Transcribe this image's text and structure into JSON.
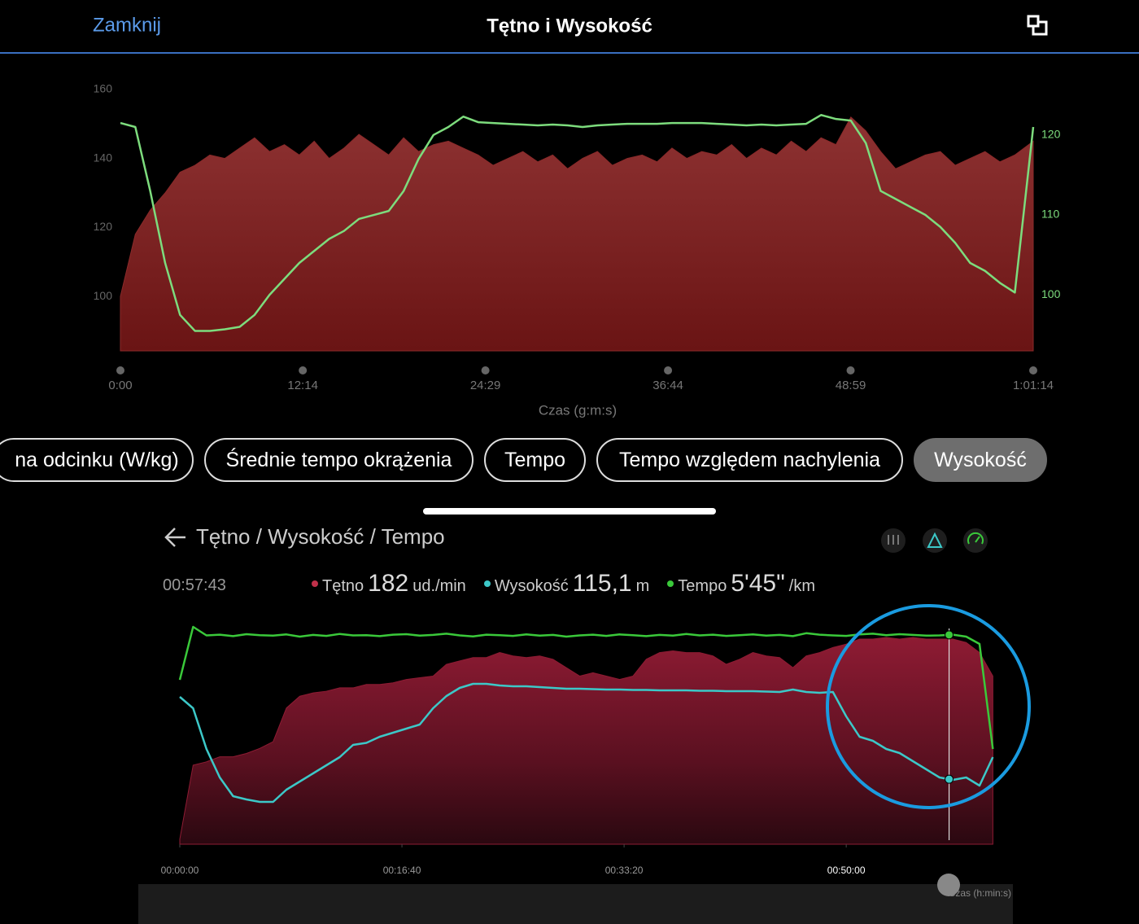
{
  "header": {
    "close": "Zamknij",
    "title": "Tętno i Wysokość"
  },
  "tabs": [
    "na odcinku (W/kg)",
    "Średnie tempo okrążenia",
    "Tempo",
    "Tempo względem nachylenia",
    "Wysokość"
  ],
  "chart_data": [
    {
      "type": "line",
      "x": [
        0,
        60,
        120,
        180,
        240,
        300,
        360,
        420,
        480,
        540,
        600,
        660,
        720,
        780,
        840,
        900,
        960,
        1020,
        1080,
        1140,
        1200,
        1260,
        1320,
        1380,
        1440,
        1500,
        1560,
        1620,
        1680,
        1740,
        1800,
        1860,
        1920,
        1980,
        2040,
        2100,
        2160,
        2220,
        2280,
        2340,
        2400,
        2460,
        2520,
        2580,
        2640,
        2700,
        2760,
        2820,
        2880,
        2940,
        3000,
        3060,
        3120,
        3180,
        3240,
        3300,
        3360,
        3420,
        3480,
        3540,
        3600,
        3674
      ],
      "xlim": [
        0,
        3674
      ],
      "xticks": [
        {
          "value": 0,
          "label": "0:00"
        },
        {
          "value": 734,
          "label": "12:14"
        },
        {
          "value": 1469,
          "label": "24:29"
        },
        {
          "value": 2204,
          "label": "36:44"
        },
        {
          "value": 2939,
          "label": "48:59"
        },
        {
          "value": 3674,
          "label": "1:01:14"
        }
      ],
      "xlabel": "Czas (g:m:s)",
      "ylim": [
        84.2,
        162.1
      ],
      "yticks": [
        100,
        120,
        140,
        160
      ],
      "y2lim": [
        93,
        126.6
      ],
      "y2ticks": [
        100,
        110,
        120
      ],
      "series": [
        {
          "type": "area",
          "color": "#8a2a2a",
          "values": [
            100,
            118,
            125,
            130,
            136,
            138,
            141,
            140,
            143,
            146,
            142,
            144,
            141,
            145,
            140,
            143,
            147,
            144,
            141,
            146,
            142,
            144,
            145,
            143,
            141,
            138,
            140,
            142,
            139,
            141,
            137,
            140,
            142,
            138,
            140,
            141,
            139,
            143,
            140,
            142,
            141,
            144,
            140,
            143,
            141,
            145,
            142,
            146,
            144,
            152,
            148,
            142,
            137,
            139,
            141,
            142,
            138,
            140,
            142,
            139,
            141,
            145
          ]
        },
        {
          "type": "line",
          "axis": "y2",
          "color": "#7ddc7d",
          "values": [
            121.5,
            121,
            113,
            104,
            97.5,
            95.5,
            95.5,
            95.7,
            96,
            97.5,
            100,
            102,
            104,
            105.5,
            107,
            108,
            109.5,
            110,
            110.5,
            113,
            117,
            120,
            121,
            122.3,
            121.6,
            121.5,
            121.4,
            121.3,
            121.2,
            121.3,
            121.2,
            121,
            121.2,
            121.3,
            121.4,
            121.4,
            121.4,
            121.5,
            121.5,
            121.5,
            121.4,
            121.3,
            121.2,
            121.3,
            121.2,
            121.3,
            121.4,
            122.5,
            122,
            121.8,
            119,
            113,
            112,
            111,
            110,
            108.5,
            106.5,
            104,
            103,
            101.5,
            100.3,
            121
          ]
        }
      ]
    },
    {
      "type": "line",
      "title": "Tętno / Wysokość / Tempo",
      "x": [
        0,
        60,
        120,
        180,
        240,
        300,
        360,
        420,
        480,
        540,
        600,
        660,
        720,
        780,
        840,
        900,
        960,
        1020,
        1080,
        1140,
        1200,
        1260,
        1320,
        1380,
        1440,
        1500,
        1560,
        1620,
        1680,
        1740,
        1800,
        1860,
        1920,
        1980,
        2040,
        2100,
        2160,
        2220,
        2280,
        2340,
        2400,
        2460,
        2520,
        2580,
        2640,
        2700,
        2760,
        2820,
        2880,
        2940,
        3000,
        3060,
        3120,
        3180,
        3240,
        3300,
        3360,
        3420,
        3480,
        3540,
        3600,
        3660
      ],
      "xlim": [
        0,
        3666
      ],
      "xticks": [
        {
          "value": 0,
          "label": "00:00:00"
        },
        {
          "value": 1000,
          "label": "00:16:40"
        },
        {
          "value": 2000,
          "label": "00:33:20"
        },
        {
          "value": 3000,
          "label": "00:50:00"
        }
      ],
      "xlabel": "Czas (h:min:s)",
      "ylim": [
        60,
        198
      ],
      "y2lim": [
        84.6,
        141.6
      ],
      "y3lim": [
        1200,
        250
      ],
      "cursor": "00:57:43",
      "series": [
        {
          "name": "Tętno",
          "type": "area",
          "color": "#8e1b33",
          "reading": "182",
          "unit": "ud./min",
          "values": [
            63,
            107,
            109,
            112,
            112,
            114,
            117,
            121,
            141,
            148,
            150,
            151,
            153,
            153,
            155,
            155,
            156,
            158,
            159,
            160,
            167,
            169,
            171,
            171,
            174,
            172,
            171,
            172,
            170,
            165,
            160,
            162,
            160,
            158,
            160,
            170,
            174,
            175,
            174,
            174,
            172,
            167,
            170,
            174,
            172,
            171,
            165,
            172,
            174,
            177,
            179,
            182,
            182,
            183,
            182,
            183,
            182,
            182,
            182,
            180,
            174,
            160
          ]
        },
        {
          "name": "Wysokość",
          "type": "line",
          "axis": "y2",
          "color": "#3cc8c8",
          "reading": "115,1",
          "unit": "m",
          "values": [
            120.8,
            118,
            108,
            101,
            96.4,
            95.6,
            95,
            95,
            98,
            100,
            102,
            104,
            106,
            109,
            109.5,
            111,
            112,
            113,
            114,
            118,
            121,
            123,
            124,
            124,
            123.6,
            123.4,
            123.4,
            123.2,
            123,
            122.8,
            122.8,
            122.7,
            122.6,
            122.6,
            122.5,
            122.5,
            122.4,
            122.4,
            122.4,
            122.3,
            122.3,
            122.2,
            122.2,
            122.2,
            122.1,
            122,
            122.6,
            122,
            121.8,
            122,
            116,
            111,
            110,
            108,
            107,
            105,
            103,
            101,
            100.4,
            101,
            99,
            106
          ]
        },
        {
          "name": "Tempo",
          "type": "line",
          "axis": "y3",
          "color": "#3ac93a",
          "reading": "5'45\"",
          "unit": "/km",
          "values": [
            527,
            310,
            345,
            342,
            348,
            340,
            344,
            346,
            341,
            350,
            343,
            347,
            339,
            345,
            344,
            348,
            342,
            340,
            346,
            343,
            338,
            345,
            349,
            342,
            344,
            347,
            341,
            346,
            343,
            350,
            345,
            342,
            347,
            341,
            344,
            348,
            343,
            346,
            339,
            345,
            342,
            347,
            344,
            341,
            346,
            343,
            348,
            336,
            342,
            345,
            347,
            341,
            338,
            344,
            340,
            343,
            346,
            345,
            342,
            350,
            380,
            810
          ]
        }
      ]
    }
  ]
}
